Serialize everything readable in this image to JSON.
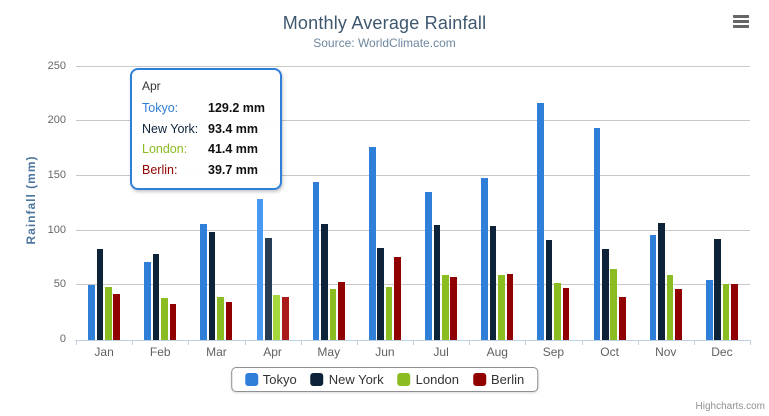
{
  "header": {
    "title": "Monthly Average Rainfall",
    "subtitle": "Source: WorldClimate.com"
  },
  "chart_data": {
    "type": "bar",
    "bar_orientation": "vertical",
    "title": "Monthly Average Rainfall",
    "subtitle": "Source: WorldClimate.com",
    "xlabel": "",
    "ylabel": "Rainfall (mm)",
    "ylim": [
      0,
      250
    ],
    "y_ticks": [
      0,
      50,
      100,
      150,
      200,
      250
    ],
    "grid": "horizontal",
    "legend_position": "bottom",
    "categories": [
      "Jan",
      "Feb",
      "Mar",
      "Apr",
      "May",
      "Jun",
      "Jul",
      "Aug",
      "Sep",
      "Oct",
      "Nov",
      "Dec"
    ],
    "series": [
      {
        "name": "Tokyo",
        "color": "#2F7ED8",
        "hover_color": "#4998F2",
        "values": [
          49.9,
          71.5,
          106.4,
          129.2,
          144.0,
          176.0,
          135.6,
          148.5,
          216.4,
          194.1,
          95.6,
          54.4
        ]
      },
      {
        "name": "New York",
        "color": "#0D233A",
        "hover_color": "#273D54",
        "values": [
          83.6,
          78.8,
          98.5,
          93.4,
          106.0,
          84.5,
          105.0,
          104.3,
          91.2,
          83.5,
          106.6,
          92.3
        ]
      },
      {
        "name": "London",
        "color": "#8BBC21",
        "hover_color": "#A5D63B",
        "values": [
          48.9,
          38.8,
          39.3,
          41.4,
          47.0,
          48.3,
          59.0,
          59.6,
          52.4,
          65.2,
          59.3,
          51.2
        ]
      },
      {
        "name": "Berlin",
        "color": "#910000",
        "hover_color": "#AB1A1A",
        "values": [
          42.4,
          33.2,
          34.5,
          39.7,
          52.6,
          75.5,
          57.4,
          60.4,
          47.6,
          39.1,
          46.8,
          51.1
        ]
      }
    ],
    "hovered_category": "Apr",
    "hovered_category_index": 3
  },
  "tooltip": {
    "header": "Apr",
    "border_color": "#2F7ED8",
    "rows": [
      {
        "name": "Tokyo:",
        "color": "#2F7ED8",
        "value": "129.2 mm"
      },
      {
        "name": "New York:",
        "color": "#0D233A",
        "value": "93.4 mm"
      },
      {
        "name": "London:",
        "color": "#8BBC21",
        "value": "41.4 mm"
      },
      {
        "name": "Berlin:",
        "color": "#910000",
        "value": "39.7 mm"
      }
    ]
  },
  "legend": {
    "items": [
      {
        "label": "Tokyo",
        "color": "#2F7ED8"
      },
      {
        "label": "New York",
        "color": "#0D233A"
      },
      {
        "label": "London",
        "color": "#8BBC21"
      },
      {
        "label": "Berlin",
        "color": "#910000"
      }
    ]
  },
  "credits": {
    "text": "Highcharts.com"
  },
  "icons": {
    "context_menu": "hamburger-icon"
  },
  "colors": {
    "grid": "#C8C8C8",
    "axis": "#C0D0E0",
    "title": "#3E576F",
    "subtitle": "#6D869F",
    "axis_labels": "#666666",
    "y_axis_title": "#4D759E",
    "legend_border": "#909090",
    "credits": "#909090"
  }
}
